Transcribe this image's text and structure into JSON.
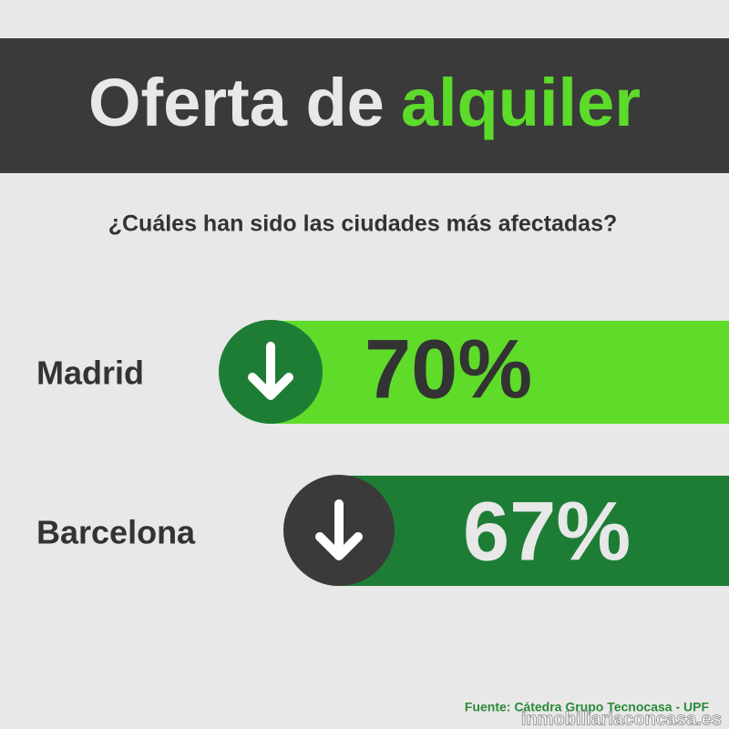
{
  "header": {
    "title_part1": "Oferta de",
    "title_part2": "alquiler",
    "subtitle": "¿Cuáles han sido las ciudades más afectadas?"
  },
  "items": [
    {
      "city": "Madrid",
      "value": "70%"
    },
    {
      "city": "Barcelona",
      "value": "67%"
    }
  ],
  "footer": {
    "source": "Fuente: Cátedra Grupo Tecnocasa - UPF",
    "watermark": "inmobiliariaconcasa.es"
  }
}
